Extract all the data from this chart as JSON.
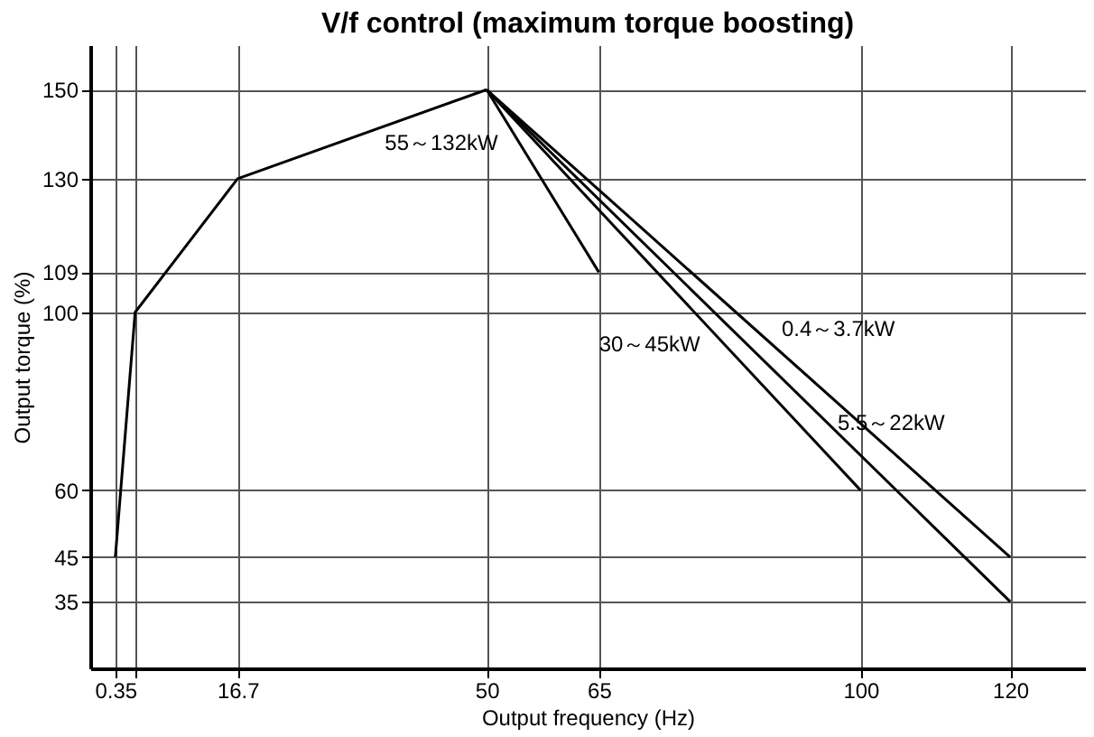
{
  "chart_data": {
    "type": "line",
    "title": "V/f control (maximum torque boosting)",
    "xlabel": "Output frequency (Hz)",
    "ylabel": "Output torque (%)",
    "series": [
      {
        "color": "#000000",
        "x": [
          0.35,
          3,
          16.7,
          50
        ],
        "values": [
          45,
          100,
          130,
          150
        ]
      },
      {
        "color": "#000000",
        "x": [
          50,
          65
        ],
        "values": [
          150,
          109
        ]
      },
      {
        "color": "#000000",
        "x": [
          50,
          100
        ],
        "values": [
          150,
          60
        ]
      },
      {
        "color": "#000000",
        "x": [
          50,
          120
        ],
        "values": [
          150,
          45
        ]
      },
      {
        "color": "#000000",
        "x": [
          50,
          120
        ],
        "values": [
          150,
          35
        ]
      }
    ],
    "annotations": [
      {
        "text": "55～132kW",
        "x": 52,
        "y": 144.5
      },
      {
        "text": "0.4～3.7kW",
        "x": 88,
        "y": 93
      },
      {
        "text": "5.5～22kW",
        "x": 95,
        "y": 76
      },
      {
        "text": "30～45kW",
        "x": 80,
        "y": 96
      }
    ],
    "xlim": [
      -3,
      130
    ],
    "ylim": [
      20,
      160
    ],
    "xticks": [
      0.35,
      {
        "value": 3,
        "label": null
      },
      16.7,
      50,
      65,
      100,
      120
    ],
    "yticks": [
      35,
      45,
      60,
      100,
      109,
      130,
      150
    ],
    "grid": true,
    "marker": "none",
    "line_style": "solid"
  }
}
